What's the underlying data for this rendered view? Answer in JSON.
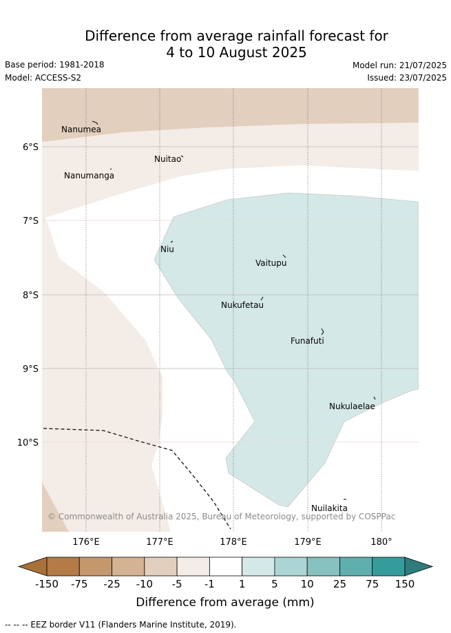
{
  "title": {
    "line1": "Difference from average rainfall forecast for",
    "line2": "4 to 10 August 2025"
  },
  "meta": {
    "base_period": "Base period: 1981-2018",
    "model": "Model: ACCESS-S2",
    "model_run": "Model run: 21/07/2025",
    "issued": "Issued: 23/07/2025"
  },
  "map": {
    "places": [
      "Nanumea",
      "Nuitao",
      "Nanumanga",
      "Niu",
      "Vaitupu",
      "Nukufetau",
      "Funafuti",
      "Nukulaelae",
      "Nuilakita"
    ],
    "latitude_labels": [
      "6°S",
      "7°S",
      "8°S",
      "9°S",
      "10°S"
    ],
    "longitude_labels": [
      "176°E",
      "177°E",
      "178°E",
      "179°E",
      "180°"
    ],
    "copyright": "© Commonwealth of Australia 2025, Bureau of Meteorology, supported by COSPPac",
    "colors": {
      "minus_10_to_minus_5": "#e3cfbe",
      "minus_5_to_minus_1": "#f4ece7",
      "minus_1_to_1": "#ffffff",
      "1_to_5": "#d4e8e7"
    }
  },
  "colorbar": {
    "tick_labels": [
      "-150",
      "-75",
      "-25",
      "-10",
      "-5",
      "-1",
      "1",
      "5",
      "10",
      "25",
      "75",
      "150"
    ],
    "colors": [
      "#a8713a",
      "#b47a47",
      "#c4976c",
      "#d4b294",
      "#e3cfbe",
      "#f4ece7",
      "#ffffff",
      "#d4e8e7",
      "#abd5d4",
      "#87c1c0",
      "#5eafae",
      "#359c9b",
      "#2f7c7c"
    ],
    "label": "Difference from average (mm)"
  },
  "footer": {
    "eez_note": "-- -- -- EEZ border V11 (Flanders Marine Institute, 2019)."
  }
}
